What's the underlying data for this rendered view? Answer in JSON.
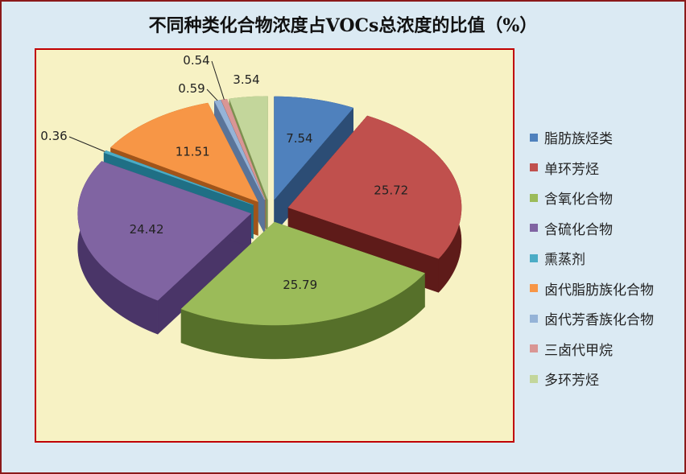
{
  "chart_data": {
    "type": "pie",
    "variant": "3d-exploded",
    "title": "不同种类化合物浓度占VOCs总浓度的比值（%）",
    "categories": [
      "脂肪族烃类",
      "单环芳烃",
      "含氧化合物",
      "含硫化合物",
      "熏蒸剂",
      "卤代脂肪族化合物",
      "卤代芳香族化合物",
      "三卤代甲烷",
      "多环芳烃"
    ],
    "values": [
      7.54,
      25.72,
      25.79,
      24.42,
      0.36,
      11.51,
      0.59,
      0.54,
      3.54
    ],
    "data_labels": [
      "7.54",
      "25.72",
      "25.79",
      "24.42",
      "0.36",
      "11.51",
      "0.59",
      "0.54",
      "3.54"
    ],
    "colors": [
      "#4f81bd",
      "#c0504d",
      "#9bbb59",
      "#8064a2",
      "#4bacc6",
      "#f79646",
      "#95b3d7",
      "#d99694",
      "#c3d69b"
    ],
    "side_colors": [
      "#2c4d75",
      "#5e1b19",
      "#56702a",
      "#4a3568",
      "#1f6f85",
      "#a0541a",
      "#5a7499",
      "#9a5755",
      "#7d9050"
    ],
    "legend_position": "right",
    "start_angle": "top",
    "direction": "clockwise"
  }
}
